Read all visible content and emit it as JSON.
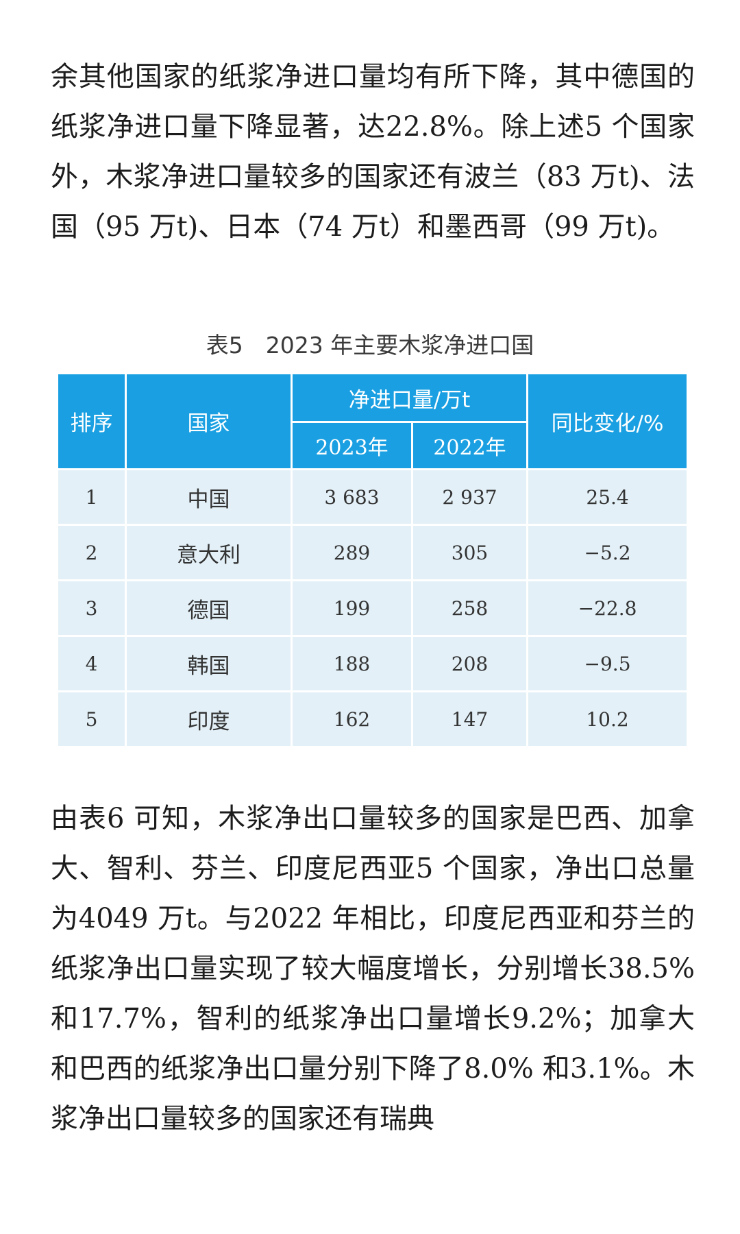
{
  "paragraphs": {
    "p1": "余其他国家的纸浆净进口量均有所下降，其中德国的纸浆净进口量下降显著，达22.8%。除上述5 个国家外，木浆净进口量较多的国家还有波兰（83 万t)、法国（95 万t)、日本（74 万t）和墨西哥（99 万t)。",
    "p2": "由表6 可知，木浆净出口量较多的国家是巴西、加拿大、智利、芬兰、印度尼西亚5 个国家，净出口总量为4049 万t。与2022 年相比，印度尼西亚和芬兰的纸浆净出口量实现了较大幅度增长，分别增长38.5% 和17.7%，智利的纸浆净出口量增长9.2%；加拿大和巴西的纸浆净出口量分别下降了8.0% 和3.1%。木浆净出口量较多的国家还有瑞典"
  },
  "table": {
    "caption": "表5　2023 年主要木浆净进口国",
    "headers": {
      "rank": "排序",
      "country": "国家",
      "net_import": "净进口量/万t",
      "y2023": "2023年",
      "y2022": "2022年",
      "change": "同比变化/%"
    },
    "rows": [
      {
        "rank": "1",
        "country": "中国",
        "v2023": "3 683",
        "v2022": "2 937",
        "change": "25.4"
      },
      {
        "rank": "2",
        "country": "意大利",
        "v2023": "289",
        "v2022": "305",
        "change": "−5.2"
      },
      {
        "rank": "3",
        "country": "德国",
        "v2023": "199",
        "v2022": "258",
        "change": "−22.8"
      },
      {
        "rank": "4",
        "country": "韩国",
        "v2023": "188",
        "v2022": "208",
        "change": "−9.5"
      },
      {
        "rank": "5",
        "country": "印度",
        "v2023": "162",
        "v2022": "147",
        "change": "10.2"
      }
    ]
  }
}
